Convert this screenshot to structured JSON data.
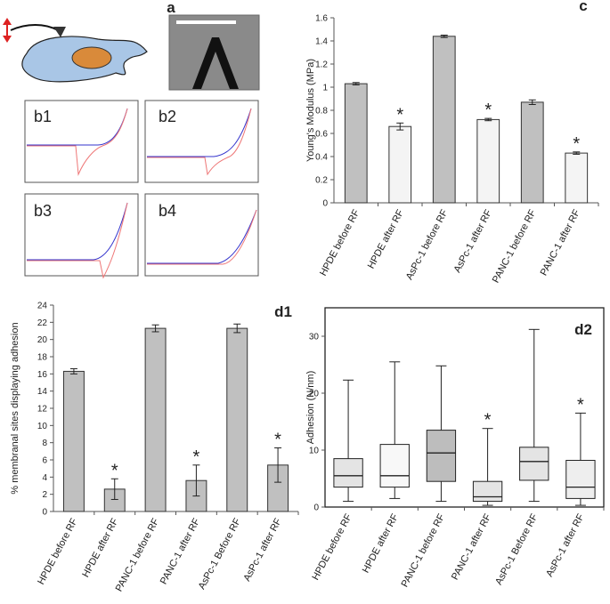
{
  "figure": {
    "panel_a": "a",
    "panel_b": [
      "b1",
      "b2",
      "b3",
      "b4"
    ]
  },
  "chart_data": [
    {
      "type": "bar",
      "panel_label": "c",
      "ylabel": "Young's Modulus (MPa)",
      "categories": [
        "HPDE before RF",
        "HPDE after RF",
        "AsPc-1 before RF",
        "AsPc-1 after RF",
        "PANC-1 before RF",
        "PANC-1 after RF"
      ],
      "values": [
        1.03,
        0.66,
        1.44,
        0.72,
        0.87,
        0.43
      ],
      "errors": [
        0.01,
        0.03,
        0.01,
        0.01,
        0.02,
        0.01
      ],
      "colors": [
        "#c0c0c0",
        "#f4f4f4",
        "#c0c0c0",
        "#f4f4f4",
        "#c0c0c0",
        "#f4f4f4"
      ],
      "annotations": [
        null,
        "*",
        null,
        "*",
        null,
        "*"
      ],
      "ylim": [
        0,
        1.6
      ],
      "yticks": [
        0,
        0.2,
        0.4,
        0.6,
        0.8,
        1,
        1.2,
        1.4,
        1.6
      ]
    },
    {
      "type": "bar",
      "panel_label": "d1",
      "ylabel": "% membranal sites displaying adhesion",
      "categories": [
        "HPDE before RF",
        "HPDE after RF",
        "PANC-1 before RF",
        "PANC-1 after RF",
        "AsPc-1 Before RF",
        "AsPc-1 after RF"
      ],
      "values": [
        16.3,
        2.6,
        21.3,
        3.6,
        21.3,
        5.4
      ],
      "errors": [
        0.3,
        1.2,
        0.4,
        1.8,
        0.5,
        2.0
      ],
      "colors": [
        "#c0c0c0",
        "#c0c0c0",
        "#c0c0c0",
        "#c0c0c0",
        "#c0c0c0",
        "#c0c0c0"
      ],
      "annotations": [
        null,
        "*",
        null,
        "*",
        null,
        "*"
      ],
      "ylim": [
        0,
        24
      ],
      "yticks": [
        0,
        2,
        4,
        6,
        8,
        10,
        12,
        14,
        16,
        18,
        20,
        22,
        24
      ]
    },
    {
      "type": "box",
      "panel_label": "d2",
      "ylabel": "Adhesion (N/nm)",
      "categories": [
        "HPDE before RF",
        "HPDE after RF",
        "PANC-1 before RF",
        "PANC-1 after RF",
        "AsPc-1 Before RF",
        "AsPc-1 after RF"
      ],
      "boxes": [
        {
          "min": 1,
          "q1": 3.5,
          "median": 5.5,
          "q3": 8.5,
          "max": 22.3
        },
        {
          "min": 1.5,
          "q1": 3.5,
          "median": 5.5,
          "q3": 11,
          "max": 25.5
        },
        {
          "min": 1,
          "q1": 4.5,
          "median": 9.5,
          "q3": 13.5,
          "max": 24.8
        },
        {
          "min": 0.3,
          "q1": 1,
          "median": 1.8,
          "q3": 4.5,
          "max": 13.8
        },
        {
          "min": 1,
          "q1": 4.7,
          "median": 8,
          "q3": 10.5,
          "max": 31.2
        },
        {
          "min": 0.3,
          "q1": 1.5,
          "median": 3.5,
          "q3": 8.2,
          "max": 16.5
        }
      ],
      "colors": [
        "#e4e4e4",
        "#f8f8f8",
        "#bdbdbd",
        "#e4e4e4",
        "#e4e4e4",
        "#eeeeee"
      ],
      "annotations": [
        null,
        null,
        null,
        "*",
        null,
        "*"
      ],
      "ylim": [
        0,
        35
      ],
      "yticks": [
        0,
        10,
        20,
        30
      ]
    }
  ]
}
